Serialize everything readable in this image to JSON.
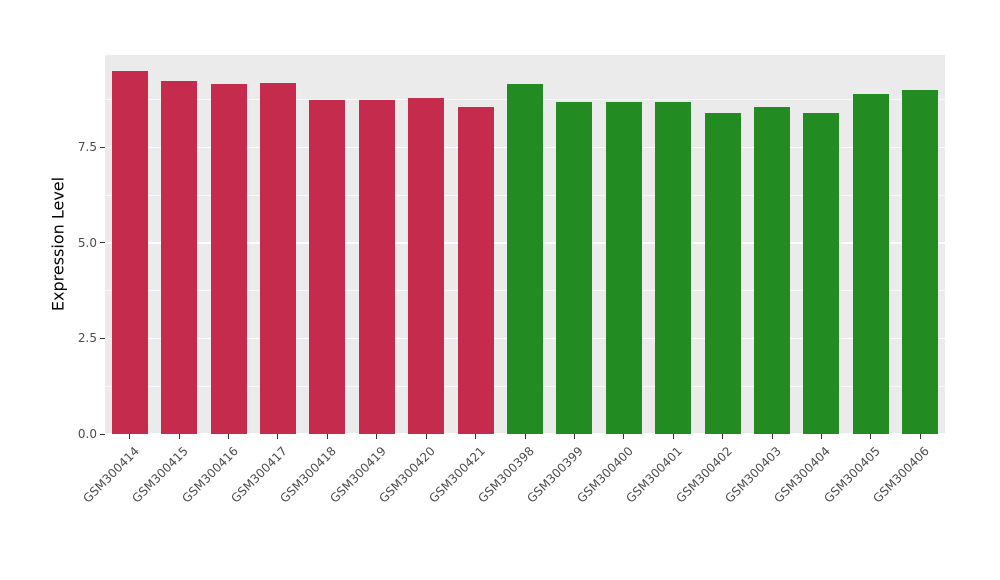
{
  "figure": {
    "background": "#FFFFFF",
    "panel_background": "#EBEBEB",
    "gridline_color": "#FFFFFF"
  },
  "chart_data": {
    "type": "bar",
    "title": "",
    "xlabel": "",
    "ylabel": "Expression Level",
    "categories": [
      "GSM300414",
      "GSM300415",
      "GSM300416",
      "GSM300417",
      "GSM300418",
      "GSM300419",
      "GSM300420",
      "GSM300421",
      "GSM300398",
      "GSM300399",
      "GSM300400",
      "GSM300401",
      "GSM300402",
      "GSM300403",
      "GSM300404",
      "GSM300405",
      "GSM300406"
    ],
    "values": [
      9.5,
      9.25,
      9.15,
      9.2,
      8.75,
      8.75,
      8.8,
      8.55,
      9.15,
      8.7,
      8.7,
      8.7,
      8.4,
      8.55,
      8.4,
      8.9,
      9.0
    ],
    "bar_groups": [
      "red",
      "red",
      "red",
      "red",
      "red",
      "red",
      "red",
      "red",
      "green",
      "green",
      "green",
      "green",
      "green",
      "green",
      "green",
      "green",
      "green"
    ],
    "group_colors": {
      "red": "#C42B4D",
      "green": "#228B22"
    },
    "ylim": [
      0,
      9.92
    ],
    "yticks": [
      0,
      2.5,
      5,
      7.5
    ],
    "ytick_labels": [
      "0.0",
      "2.5",
      "5.0",
      "7.5"
    ],
    "minor_gridlines": [
      1.25,
      3.75,
      6.25,
      8.75
    ],
    "grid": true,
    "legend_position": "none"
  }
}
